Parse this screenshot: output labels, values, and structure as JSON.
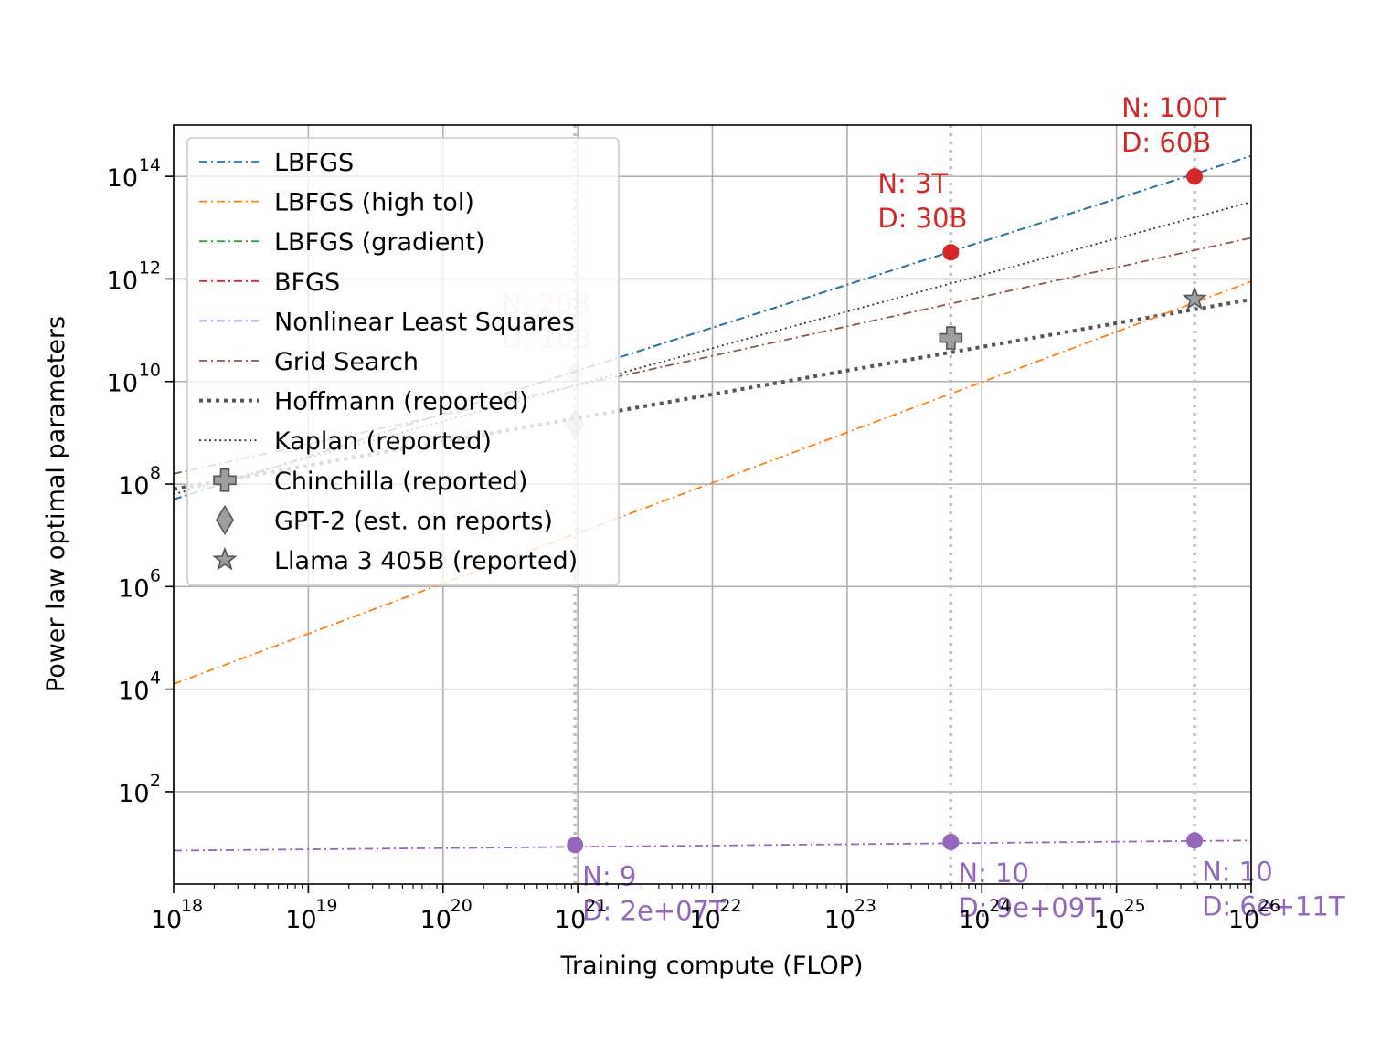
{
  "chart_data": {
    "type": "line",
    "title": "",
    "xlabel": "Training compute (FLOP)",
    "ylabel": "Power law optimal parameters",
    "xscale": "log",
    "yscale": "log",
    "xlim_exp": [
      18,
      26
    ],
    "ylim_exp": [
      0.2,
      15.0
    ],
    "x_ticks": [
      {
        "base": "10",
        "exp": "18"
      },
      {
        "base": "10",
        "exp": "19"
      },
      {
        "base": "10",
        "exp": "20"
      },
      {
        "base": "10",
        "exp": "21"
      },
      {
        "base": "10",
        "exp": "22"
      },
      {
        "base": "10",
        "exp": "23"
      },
      {
        "base": "10",
        "exp": "24"
      },
      {
        "base": "10",
        "exp": "25"
      },
      {
        "base": "10",
        "exp": "26"
      }
    ],
    "y_ticks": [
      {
        "base": "10",
        "exp": "2"
      },
      {
        "base": "10",
        "exp": "4"
      },
      {
        "base": "10",
        "exp": "6"
      },
      {
        "base": "10",
        "exp": "8"
      },
      {
        "base": "10",
        "exp": "10"
      },
      {
        "base": "10",
        "exp": "12"
      },
      {
        "base": "10",
        "exp": "14"
      }
    ],
    "grid": true,
    "legend_position": "upper-left",
    "series": [
      {
        "name": "LBFGS",
        "color": "#1f77b4",
        "style": "dashdot",
        "x_log": [
          18,
          26
        ],
        "y_log": [
          7.7,
          14.4
        ]
      },
      {
        "name": "LBFGS (high tol)",
        "color": "#ff7f0e",
        "style": "dashdot",
        "x_log": [
          18,
          26
        ],
        "y_log": [
          4.1,
          11.95
        ]
      },
      {
        "name": "LBFGS (gradient)",
        "color": "#2ca02c",
        "style": "dashdot",
        "x_log": [
          18,
          26
        ],
        "y_log": [
          7.7,
          14.4
        ]
      },
      {
        "name": "BFGS",
        "color": "#d62728",
        "style": "dashdot",
        "x_log": [
          18,
          26
        ],
        "y_log": [
          7.7,
          14.4
        ]
      },
      {
        "name": "Nonlinear Least Squares",
        "color": "#9467bd",
        "style": "dashdot",
        "x_log": [
          18,
          26
        ],
        "y_log": [
          0.85,
          1.05
        ]
      },
      {
        "name": "Grid Search",
        "color": "#8c564b",
        "style": "dashdot",
        "x_log": [
          18,
          26
        ],
        "y_log": [
          8.2,
          12.8
        ]
      },
      {
        "name": "Hoffmann (reported)",
        "color": "#555555",
        "style": "dotted-thick",
        "x_log": [
          18,
          26
        ],
        "y_log": [
          7.9,
          11.6
        ]
      },
      {
        "name": "Kaplan (reported)",
        "color": "#333333",
        "style": "dotted",
        "x_log": [
          18,
          26
        ],
        "y_log": [
          7.8,
          13.5
        ]
      }
    ],
    "reference_points": [
      {
        "name": "Chinchilla (reported)",
        "marker": "plus",
        "x_log": 23.77,
        "y_log": 10.85
      },
      {
        "name": "GPT-2 (est. on reports)",
        "marker": "diamond",
        "x_log": 20.98,
        "y_log": 9.18
      },
      {
        "name": "Llama 3 405B (reported)",
        "marker": "star",
        "x_log": 25.58,
        "y_log": 11.61
      }
    ],
    "vertical_lines_x_log": [
      20.98,
      23.77,
      25.58
    ],
    "annotations": [
      {
        "x_log": 20.98,
        "y_log": 10.17,
        "color": "#d62728",
        "faded": true,
        "line1": "N: 20B",
        "line2": "D: 10B",
        "label_pos": "above"
      },
      {
        "x_log": 23.77,
        "y_log": 12.52,
        "color": "#d62728",
        "faded": false,
        "line1": "N: 3T",
        "line2": "D: 30B",
        "label_pos": "above"
      },
      {
        "x_log": 25.58,
        "y_log": 14.0,
        "color": "#d62728",
        "faded": false,
        "line1": "N: 100T",
        "line2": "D: 60B",
        "label_pos": "above"
      },
      {
        "x_log": 20.98,
        "y_log": 0.96,
        "color": "#9467bd",
        "faded": false,
        "line1": "N: 9",
        "line2": "D: 2e+07T",
        "label_pos": "below"
      },
      {
        "x_log": 23.77,
        "y_log": 1.02,
        "color": "#9467bd",
        "faded": false,
        "line1": "N: 10",
        "line2": "D: 9e+09T",
        "label_pos": "below"
      },
      {
        "x_log": 25.58,
        "y_log": 1.05,
        "color": "#9467bd",
        "faded": false,
        "line1": "N: 10",
        "line2": "D: 6e+11T",
        "label_pos": "below"
      }
    ]
  }
}
